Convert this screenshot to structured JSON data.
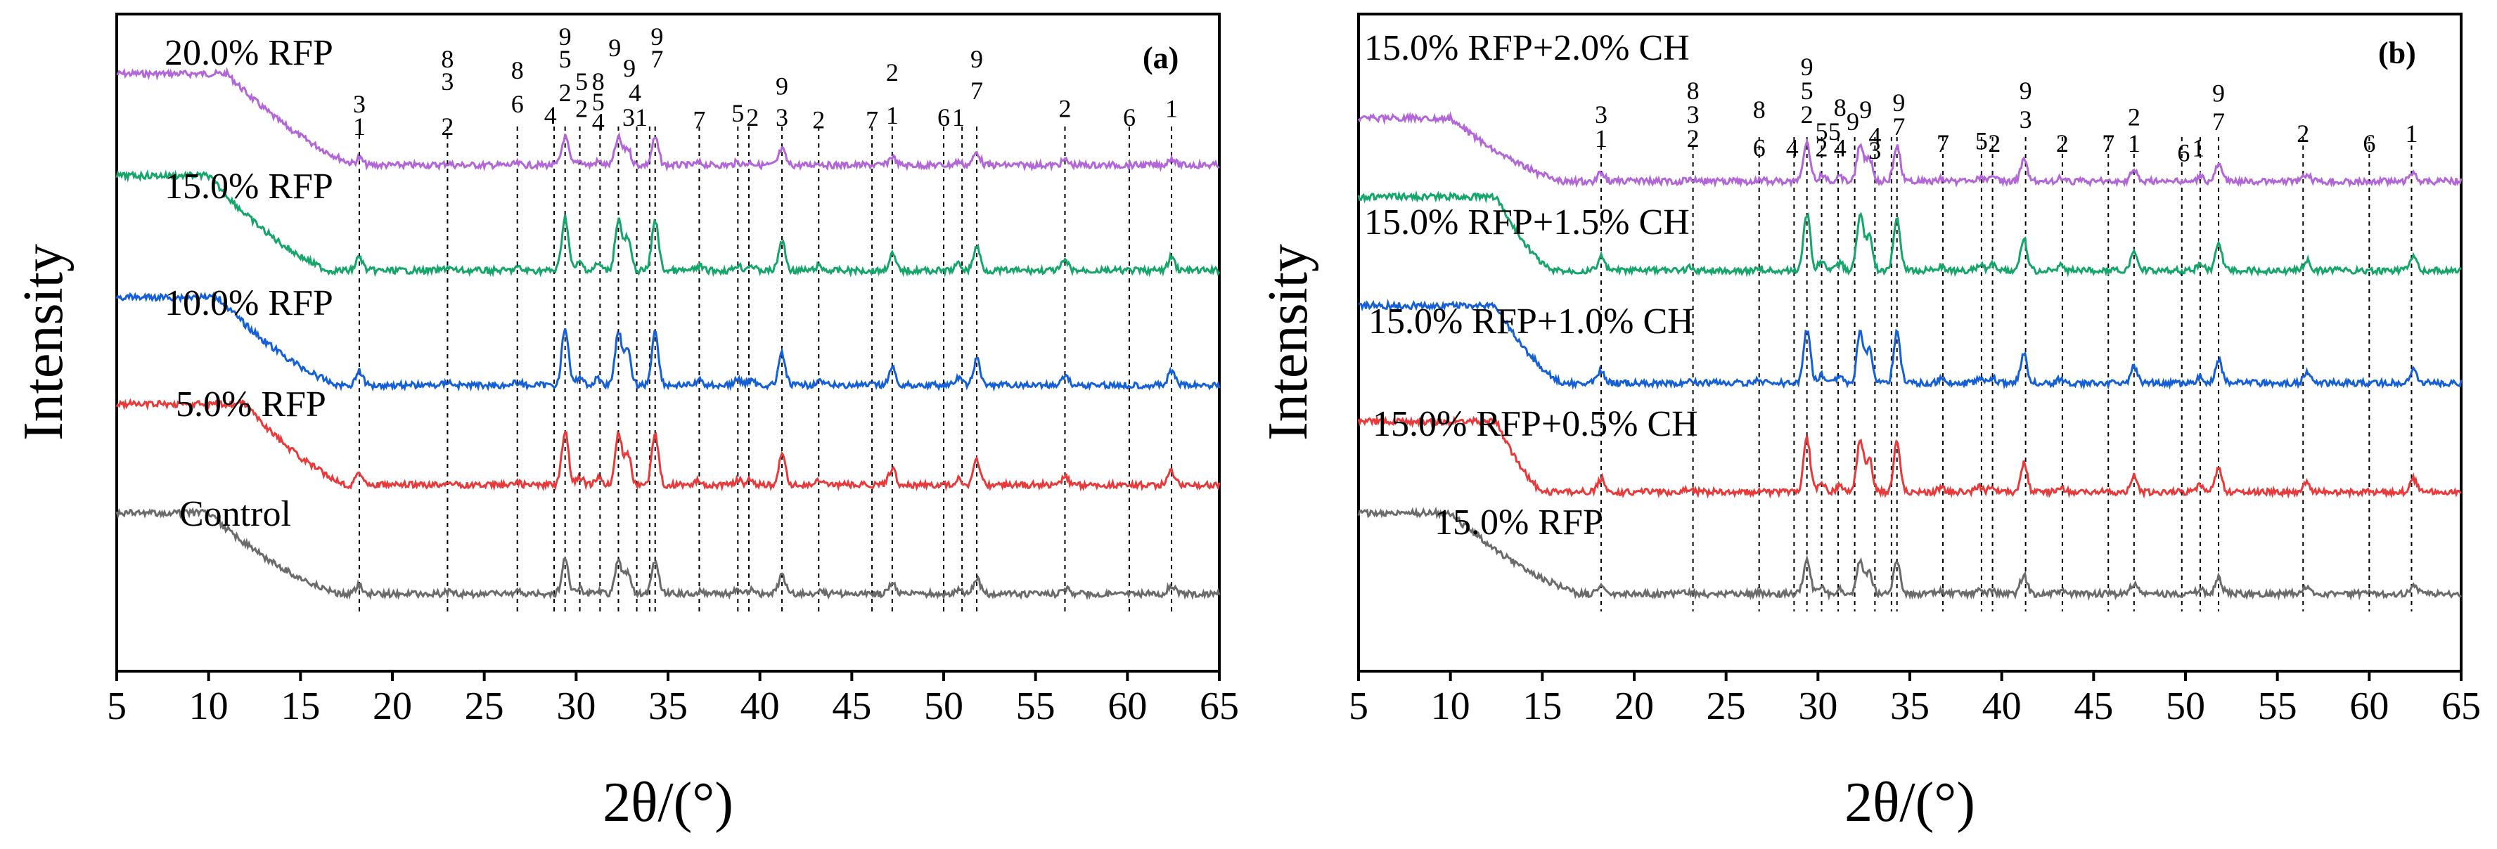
{
  "chart_data": [
    {
      "type": "line",
      "panel_tag": "(a)",
      "xlabel": "2θ/(°)",
      "ylabel": "Intensity",
      "xlim": [
        5,
        65
      ],
      "x_ticks": [
        5,
        10,
        15,
        20,
        25,
        30,
        35,
        40,
        45,
        50,
        55,
        60,
        65
      ],
      "series": [
        {
          "name": "20.0% RFP",
          "color": "#b266d8"
        },
        {
          "name": "15.0% RFP",
          "color": "#16a66b"
        },
        {
          "name": "10.0% RFP",
          "color": "#1560d6"
        },
        {
          "name": "5.0% RFP",
          "color": "#e83a3a"
        },
        {
          "name": "Control",
          "color": "#6b6b6b"
        }
      ],
      "reference_lines": [
        18.2,
        23.0,
        26.8,
        28.8,
        29.4,
        30.2,
        31.3,
        32.3,
        33.3,
        34.0,
        34.3,
        36.7,
        38.8,
        39.4,
        41.2,
        43.2,
        46.1,
        47.2,
        50.0,
        51.0,
        51.8,
        56.6,
        60.1,
        62.4
      ],
      "peak_labels": [
        {
          "x": 18.2,
          "text": "3",
          "row": 0
        },
        {
          "x": 18.2,
          "text": "1",
          "row": 1
        },
        {
          "x": 23.0,
          "text": "8",
          "row": -2
        },
        {
          "x": 23.0,
          "text": "3",
          "row": -1
        },
        {
          "x": 23.0,
          "text": "2",
          "row": 1
        },
        {
          "x": 26.8,
          "text": "8",
          "row": -1.5
        },
        {
          "x": 26.8,
          "text": "6",
          "row": 0
        },
        {
          "x": 28.6,
          "text": "4",
          "row": 0.5
        },
        {
          "x": 29.4,
          "text": "9",
          "row": -3
        },
        {
          "x": 29.4,
          "text": "5",
          "row": -2
        },
        {
          "x": 29.4,
          "text": "2",
          "row": -0.5
        },
        {
          "x": 30.3,
          "text": "5",
          "row": -1
        },
        {
          "x": 30.3,
          "text": "2",
          "row": 0.2
        },
        {
          "x": 31.2,
          "text": "8",
          "row": -1
        },
        {
          "x": 31.2,
          "text": "5",
          "row": -0.1
        },
        {
          "x": 31.2,
          "text": "4",
          "row": 0.8
        },
        {
          "x": 32.1,
          "text": "9",
          "row": -2.5
        },
        {
          "x": 32.9,
          "text": "9",
          "row": -1.6
        },
        {
          "x": 33.2,
          "text": "4",
          "row": -0.5
        },
        {
          "x": 33.2,
          "text": "31",
          "row": 0.6
        },
        {
          "x": 34.4,
          "text": "9",
          "row": -3
        },
        {
          "x": 34.4,
          "text": "7",
          "row": -2
        },
        {
          "x": 36.7,
          "text": "7",
          "row": 0.7
        },
        {
          "x": 38.8,
          "text": "5",
          "row": 0.4
        },
        {
          "x": 39.6,
          "text": "2",
          "row": 0.6
        },
        {
          "x": 41.2,
          "text": "9",
          "row": -0.8
        },
        {
          "x": 41.2,
          "text": "3",
          "row": 0.6
        },
        {
          "x": 43.2,
          "text": "2",
          "row": 0.7
        },
        {
          "x": 46.1,
          "text": "7",
          "row": 0.7
        },
        {
          "x": 47.2,
          "text": "2",
          "row": -1.4
        },
        {
          "x": 47.2,
          "text": "1",
          "row": 0.5
        },
        {
          "x": 50.0,
          "text": "6",
          "row": 0.6
        },
        {
          "x": 50.8,
          "text": "1",
          "row": 0.6
        },
        {
          "x": 51.8,
          "text": "9",
          "row": -2
        },
        {
          "x": 51.8,
          "text": "7",
          "row": -0.6
        },
        {
          "x": 56.6,
          "text": "2",
          "row": 0.2
        },
        {
          "x": 60.1,
          "text": "6",
          "row": 0.6
        },
        {
          "x": 62.4,
          "text": "1",
          "row": 0.2
        }
      ]
    },
    {
      "type": "line",
      "panel_tag": "(b)",
      "xlabel": "2θ/(°)",
      "ylabel": "Intensity",
      "xlim": [
        5,
        65
      ],
      "x_ticks": [
        5,
        10,
        15,
        20,
        25,
        30,
        35,
        40,
        45,
        50,
        55,
        60,
        65
      ],
      "series": [
        {
          "name": "15.0% RFP+2.0% CH",
          "color": "#b266d8"
        },
        {
          "name": "15.0% RFP+1.5% CH",
          "color": "#16a66b"
        },
        {
          "name": "15.0% RFP+1.0% CH",
          "color": "#1560d6"
        },
        {
          "name": "15.0% RFP+0.5% CH",
          "color": "#e83a3a"
        },
        {
          "name": "15.0% RFP",
          "color": "#6b6b6b"
        }
      ],
      "reference_lines": [
        18.2,
        23.2,
        26.8,
        28.7,
        29.4,
        30.2,
        31.1,
        32.0,
        33.1,
        34.0,
        34.3,
        36.8,
        38.9,
        39.5,
        41.3,
        43.3,
        45.8,
        47.2,
        49.8,
        50.8,
        51.8,
        56.4,
        60.0,
        62.3
      ],
      "peak_labels": [
        {
          "x": 18.2,
          "text": "3",
          "row": 0
        },
        {
          "x": 18.2,
          "text": "1",
          "row": 1
        },
        {
          "x": 23.2,
          "text": "8",
          "row": -1
        },
        {
          "x": 23.2,
          "text": "3",
          "row": 0
        },
        {
          "x": 23.2,
          "text": "2",
          "row": 1
        },
        {
          "x": 26.8,
          "text": "8",
          "row": -0.2
        },
        {
          "x": 26.8,
          "text": "6",
          "row": 1.4
        },
        {
          "x": 28.6,
          "text": "4",
          "row": 1.4
        },
        {
          "x": 29.4,
          "text": "9",
          "row": -2
        },
        {
          "x": 29.4,
          "text": "5",
          "row": -1
        },
        {
          "x": 29.4,
          "text": "2",
          "row": 0
        },
        {
          "x": 30.2,
          "text": "5",
          "row": 0.7
        },
        {
          "x": 30.2,
          "text": "2",
          "row": 1.4
        },
        {
          "x": 30.9,
          "text": "5",
          "row": 0.7
        },
        {
          "x": 31.2,
          "text": "8",
          "row": -0.3
        },
        {
          "x": 31.2,
          "text": "4",
          "row": 1.4
        },
        {
          "x": 31.9,
          "text": "9",
          "row": 0.3
        },
        {
          "x": 32.6,
          "text": "9",
          "row": -0.2
        },
        {
          "x": 33.1,
          "text": "4",
          "row": 0.9
        },
        {
          "x": 33.1,
          "text": "3",
          "row": 1.5
        },
        {
          "x": 34.4,
          "text": "9",
          "row": -0.5
        },
        {
          "x": 34.4,
          "text": "7",
          "row": 0.5
        },
        {
          "x": 36.8,
          "text": "7",
          "row": 1.2
        },
        {
          "x": 38.9,
          "text": "5",
          "row": 1.1
        },
        {
          "x": 39.6,
          "text": "2",
          "row": 1.2
        },
        {
          "x": 41.3,
          "text": "9",
          "row": -1
        },
        {
          "x": 41.3,
          "text": "3",
          "row": 0.2
        },
        {
          "x": 43.3,
          "text": "2",
          "row": 1.2
        },
        {
          "x": 45.8,
          "text": "7",
          "row": 1.2
        },
        {
          "x": 47.2,
          "text": "2",
          "row": 0.1
        },
        {
          "x": 47.2,
          "text": "1",
          "row": 1.2
        },
        {
          "x": 49.9,
          "text": "6",
          "row": 1.6
        },
        {
          "x": 50.7,
          "text": "1",
          "row": 1.4
        },
        {
          "x": 51.8,
          "text": "9",
          "row": -0.9
        },
        {
          "x": 51.8,
          "text": "7",
          "row": 0.3
        },
        {
          "x": 56.4,
          "text": "2",
          "row": 0.8
        },
        {
          "x": 60.0,
          "text": "6",
          "row": 1.2
        },
        {
          "x": 62.3,
          "text": "1",
          "row": 0.8
        }
      ]
    }
  ]
}
